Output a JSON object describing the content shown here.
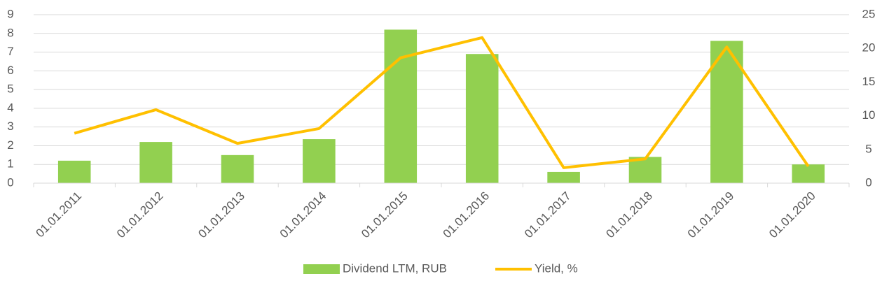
{
  "chart_data": {
    "type": "bar_line",
    "categories": [
      "01.01.2011",
      "01.01.2012",
      "01.01.2013",
      "01.01.2014",
      "01.01.2015",
      "01.01.2016",
      "01.01.2017",
      "01.01.2018",
      "01.01.2019",
      "01.01.2020"
    ],
    "series": [
      {
        "name": "Dividend LTM, RUB",
        "color": "#92d050",
        "type": "bar",
        "values": [
          1.2,
          2.2,
          1.5,
          2.35,
          8.2,
          6.9,
          0.6,
          1.4,
          7.6,
          1.0
        ]
      },
      {
        "name": "Yield, %",
        "color": "#ffc000",
        "type": "line",
        "axis": "y2",
        "values": [
          7.4,
          10.9,
          5.9,
          8.1,
          18.6,
          21.6,
          2.3,
          3.6,
          20.2,
          2.5
        ]
      }
    ],
    "ylim": [
      0,
      9
    ],
    "yticks": [
      0,
      1,
      2,
      3,
      4,
      5,
      6,
      7,
      8,
      9
    ],
    "y2lim": [
      0,
      25
    ],
    "y2ticks": [
      0,
      5,
      10,
      15,
      20,
      25
    ],
    "grid": true,
    "legend": "bottom"
  }
}
